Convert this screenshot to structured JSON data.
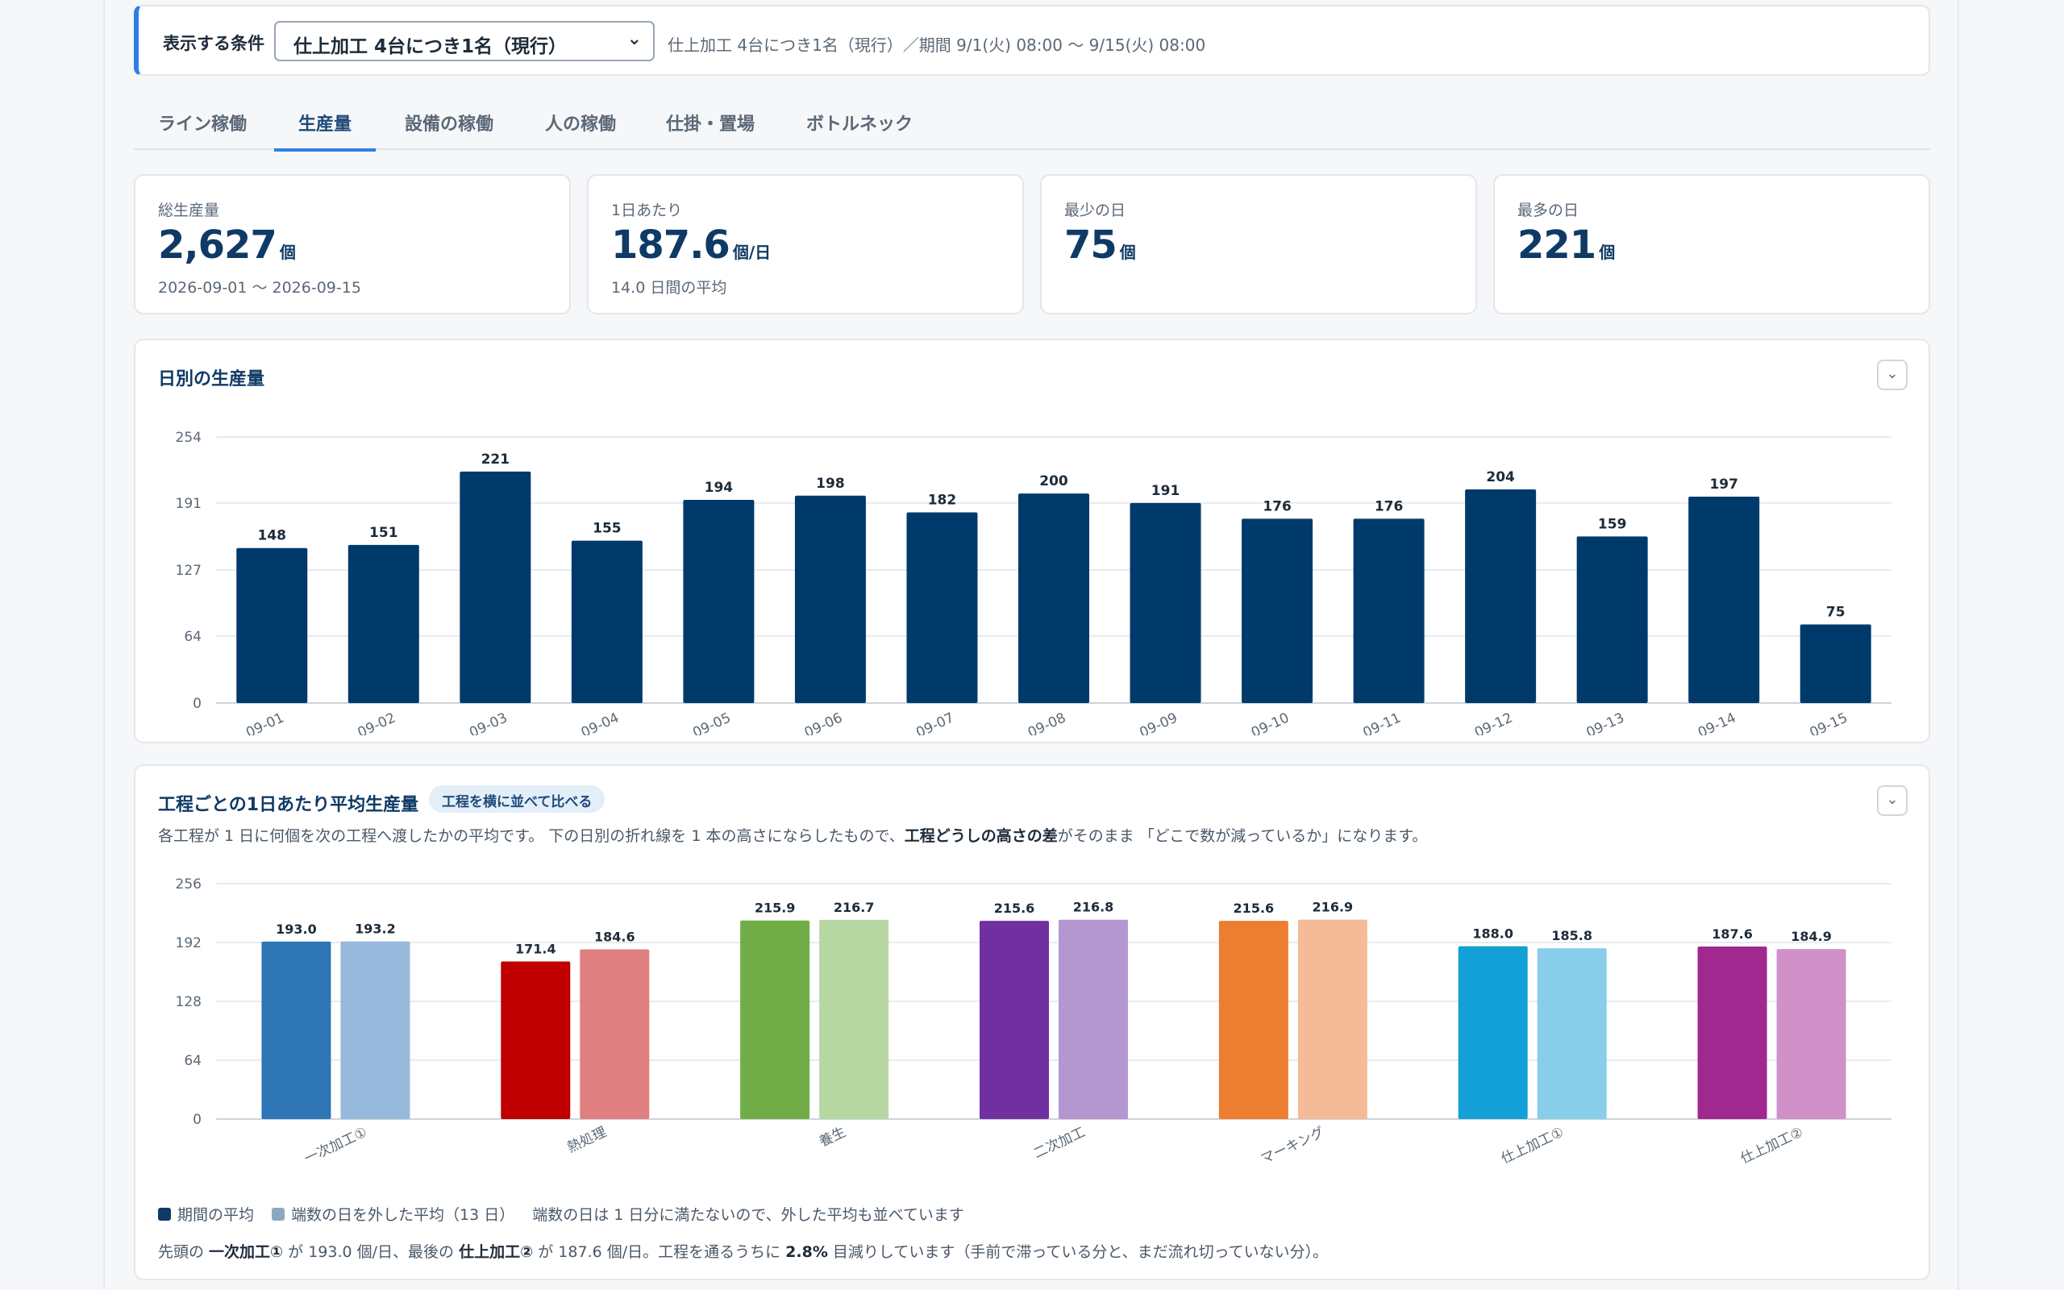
{
  "condition": {
    "label": "表示する条件",
    "selected": "仕上加工 4台につき1名（現行）",
    "description": "仕上加工 4台につき1名（現行）／期間 9/1(火) 08:00 〜 9/15(火) 08:00"
  },
  "tabs": [
    "ライン稼働",
    "生産量",
    "設備の稼働",
    "人の稼働",
    "仕掛・置場",
    "ボトルネック"
  ],
  "active_tab": "生産量",
  "kpis": [
    {
      "label": "総生産量",
      "value": "2,627",
      "unit": "個",
      "sub": "2026-09-01 〜 2026-09-15"
    },
    {
      "label": "1日あたり",
      "value": "187.6",
      "unit": "個/日",
      "sub": "14.0 日間の平均"
    },
    {
      "label": "最少の日",
      "value": "75",
      "unit": "個",
      "sub": ""
    },
    {
      "label": "最多の日",
      "value": "221",
      "unit": "個",
      "sub": ""
    }
  ],
  "daily_panel": {
    "title": "日別の生産量",
    "collapse_icon": "chevron-down-icon"
  },
  "process_panel": {
    "title": "工程ごとの1日あたり平均生産量",
    "pill": "工程を横に並べて比べる",
    "desc_1": "各工程が 1 日に何個を次の工程へ渡したかの平均です。 下の日別の折れ線を 1 本の高さにならしたもので、",
    "desc_bold": "工程どうしの高さの差",
    "desc_2": "がそのまま 「どこで数が減っているか」になります。",
    "legend_1": "期間の平均",
    "legend_2": "端数の日を外した平均（13 日）",
    "legend_note": "端数の日は 1 日分に満たないので、外した平均も並べています",
    "foot_1": "先頭の ",
    "foot_b1": "一次加工①",
    "foot_2": " が 193.0 個/日、最後の ",
    "foot_b2": "仕上加工②",
    "foot_3": " が 187.6 個/日。工程を通るうちに ",
    "foot_b3": "2.8%",
    "foot_4": " 目減りしています（手前で滞っている分と、まだ流れ切っていない分）。"
  },
  "colors": {
    "primary": "#003a6b",
    "accent": "#2f7fe6"
  },
  "chart_data": [
    {
      "type": "bar",
      "title": "日別の生産量",
      "categories": [
        "09-01",
        "09-02",
        "09-03",
        "09-04",
        "09-05",
        "09-06",
        "09-07",
        "09-08",
        "09-09",
        "09-10",
        "09-11",
        "09-12",
        "09-13",
        "09-14",
        "09-15"
      ],
      "values": [
        148,
        151,
        221,
        155,
        194,
        198,
        182,
        200,
        191,
        176,
        176,
        204,
        159,
        197,
        75
      ],
      "yticks": [
        0,
        64,
        127,
        191,
        254
      ],
      "ylim": [
        0,
        254
      ],
      "color": "#003a6b",
      "grid": true
    },
    {
      "type": "bar",
      "title": "工程ごとの1日あたり平均生産量",
      "categories": [
        "一次加工①",
        "熱処理",
        "養生",
        "二次加工",
        "マーキング",
        "仕上加工①",
        "仕上加工②"
      ],
      "series": [
        {
          "name": "期間の平均",
          "values": [
            193.0,
            171.4,
            215.9,
            215.6,
            215.6,
            188.0,
            187.6
          ]
        },
        {
          "name": "端数の日を外した平均（13 日）",
          "values": [
            193.2,
            184.6,
            216.7,
            216.8,
            216.9,
            185.8,
            184.9
          ]
        }
      ],
      "colors_full": [
        "#2e75b6",
        "#c00000",
        "#70ad47",
        "#7030a0",
        "#ed7d31",
        "#12a0d7",
        "#a0288f"
      ],
      "colors_light": [
        "#97b9dc",
        "#e07f80",
        "#b7d7a2",
        "#b497d0",
        "#f5bb98",
        "#88cdea",
        "#cf91c7"
      ],
      "yticks": [
        0,
        64,
        128,
        192,
        256
      ],
      "ylim": [
        0,
        256
      ],
      "grid": true
    }
  ]
}
